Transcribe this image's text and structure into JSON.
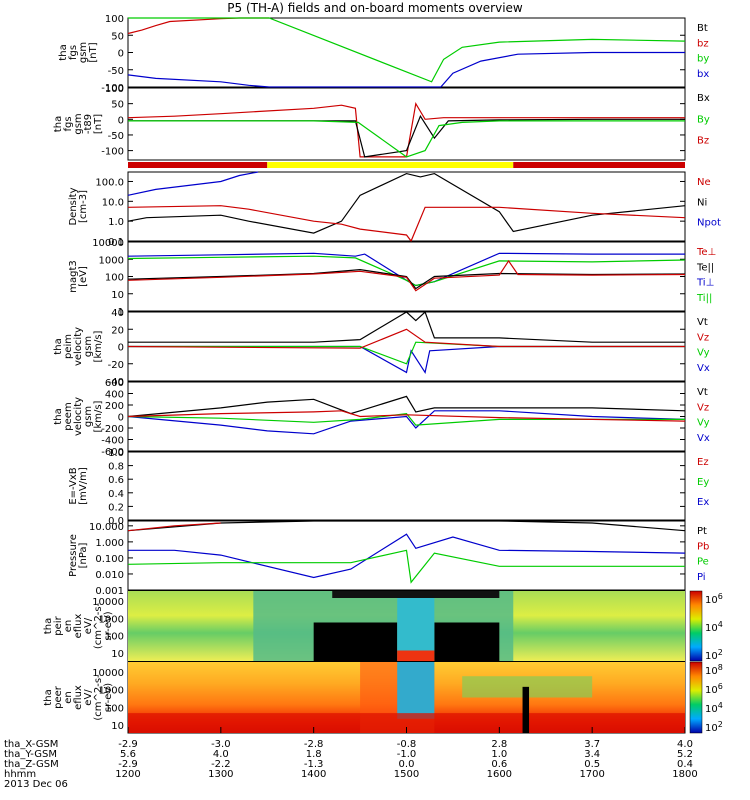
{
  "title": "P5 (TH-A) fields and on-board moments overview",
  "chart_data": [
    {
      "type": "line",
      "panel": "bgsm",
      "ylabel": [
        "tha",
        "fgs",
        "gsm",
        "[nT]"
      ],
      "yticks": [
        "100",
        "50",
        "0",
        "-50",
        "-100"
      ],
      "ylim": [
        -100,
        100
      ],
      "legend": [
        {
          "name": "Bt",
          "color": "#000000"
        },
        {
          "name": "bz",
          "color": "#cc0000"
        },
        {
          "name": "by",
          "color": "#00cc00"
        },
        {
          "name": "bx",
          "color": "#0000cc"
        }
      ],
      "series": [
        {
          "name": "bz",
          "color": "#cc0000",
          "x": [
            1200,
            1215,
            1230,
            1245,
            1300,
            1320,
            1340,
            1352
          ],
          "y": [
            55,
            65,
            78,
            90,
            98,
            100,
            100,
            100
          ]
        },
        {
          "name": "by",
          "color": "#00cc00",
          "x": [
            1200,
            1230,
            1300,
            1330,
            1352,
            1527,
            1540,
            1560,
            1600,
            1700,
            1800
          ],
          "y": [
            100,
            100,
            100,
            100,
            100,
            -85,
            -20,
            15,
            30,
            38,
            33
          ]
        },
        {
          "name": "bx",
          "color": "#0000cc",
          "x": [
            1200,
            1230,
            1300,
            1330,
            1352,
            1537,
            1550,
            1580,
            1620,
            1700,
            1800
          ],
          "y": [
            -65,
            -75,
            -85,
            -95,
            -100,
            -100,
            -60,
            -25,
            -5,
            0,
            0
          ]
        }
      ]
    },
    {
      "type": "line",
      "panel": "bgse",
      "ylabel": [
        "tha",
        "fgs",
        "gsm",
        "-t89",
        "[nT]"
      ],
      "yticks": [
        "100",
        "50",
        "0",
        "-50",
        "-100"
      ],
      "ylim": [
        -130,
        100
      ],
      "legend": [
        {
          "name": "Bx",
          "color": "#000000"
        },
        {
          "name": "By",
          "color": "#00cc00"
        },
        {
          "name": "Bz",
          "color": "#cc0000"
        }
      ],
      "series": [
        {
          "name": "Bz",
          "color": "#cc0000",
          "x": [
            1200,
            1250,
            1300,
            1340,
            1400,
            1430,
            1445,
            1450,
            1500,
            1510,
            1520,
            1540,
            1600,
            1700,
            1800
          ],
          "y": [
            5,
            10,
            18,
            25,
            35,
            45,
            35,
            -120,
            -120,
            50,
            0,
            5,
            5,
            5,
            5
          ]
        },
        {
          "name": "Bx",
          "color": "#000000",
          "x": [
            1200,
            1300,
            1400,
            1445,
            1455,
            1500,
            1515,
            1530,
            1545,
            1600,
            1700,
            1800
          ],
          "y": [
            -5,
            -5,
            -5,
            -5,
            -120,
            -100,
            10,
            -60,
            -5,
            -2,
            0,
            0
          ]
        },
        {
          "name": "By",
          "color": "#00cc00",
          "x": [
            1200,
            1300,
            1400,
            1448,
            1500,
            1520,
            1535,
            1560,
            1600,
            1700,
            1800
          ],
          "y": [
            -5,
            -5,
            -5,
            -10,
            -120,
            -100,
            -20,
            -10,
            -5,
            -5,
            -5
          ]
        }
      ]
    },
    {
      "type": "line",
      "panel": "density",
      "ylabel": [
        "Density",
        "[cm-3]"
      ],
      "yticks": [
        "100.0",
        "10.0",
        "1.0",
        "0.1"
      ],
      "scale": "log",
      "ylim": [
        0.1,
        300
      ],
      "legend": [
        {
          "name": "Ne",
          "color": "#cc0000"
        },
        {
          "name": "Ni",
          "color": "#000000"
        },
        {
          "name": "Npot",
          "color": "#0000cc"
        }
      ],
      "series": [
        {
          "name": "Ni",
          "color": "#000000",
          "x": [
            1200,
            1220,
            1300,
            1330,
            1400,
            1430,
            1450,
            1500,
            1515,
            1530,
            1600,
            1615,
            1700,
            1800
          ],
          "y": [
            1,
            1.5,
            2,
            1,
            0.25,
            1,
            20,
            250,
            170,
            250,
            3,
            0.3,
            2,
            6
          ]
        },
        {
          "name": "Ne",
          "color": "#cc0000",
          "x": [
            1200,
            1300,
            1330,
            1400,
            1430,
            1450,
            1500,
            1505,
            1520,
            1600,
            1700,
            1800
          ],
          "y": [
            5,
            6,
            4,
            1,
            0.7,
            0.4,
            0.2,
            0.1,
            5,
            5,
            2.5,
            1.5
          ]
        },
        {
          "name": "Npot",
          "color": "#0000cc",
          "x": [
            1200,
            1230,
            1300,
            1320,
            1340
          ],
          "y": [
            20,
            40,
            100,
            200,
            300
          ]
        }
      ]
    },
    {
      "type": "line",
      "panel": "temperature",
      "ylabel": [
        "magt3",
        "[eV]"
      ],
      "yticks": [
        "10000",
        "1000",
        "100",
        "10",
        "1"
      ],
      "scale": "log",
      "ylim": [
        1,
        10000
      ],
      "legend": [
        {
          "name": "Te⊥",
          "color": "#cc0000"
        },
        {
          "name": "Te||",
          "color": "#000000"
        },
        {
          "name": "Ti⊥",
          "color": "#0000cc"
        },
        {
          "name": "Ti||",
          "color": "#00cc00"
        }
      ],
      "series": [
        {
          "name": "Ti⊥",
          "color": "#0000cc",
          "x": [
            1200,
            1300,
            1400,
            1445,
            1455,
            1500,
            1510,
            1530,
            1600,
            1700,
            1800
          ],
          "y": [
            1500,
            1800,
            2200,
            1500,
            2000,
            60,
            30,
            50,
            2200,
            2000,
            2000
          ]
        },
        {
          "name": "Ti||",
          "color": "#00cc00",
          "x": [
            1200,
            1300,
            1400,
            1445,
            1500,
            1510,
            1530,
            1600,
            1700,
            1800
          ],
          "y": [
            1100,
            1300,
            1500,
            1200,
            60,
            30,
            50,
            800,
            700,
            900
          ]
        },
        {
          "name": "Te||",
          "color": "#000000",
          "x": [
            1200,
            1300,
            1400,
            1450,
            1500,
            1510,
            1530,
            1600,
            1700,
            1800
          ],
          "y": [
            70,
            100,
            150,
            250,
            100,
            20,
            100,
            150,
            130,
            140
          ]
        },
        {
          "name": "Te⊥",
          "color": "#cc0000",
          "x": [
            1200,
            1300,
            1400,
            1450,
            1500,
            1510,
            1530,
            1600,
            1610,
            1620,
            1700,
            1800
          ],
          "y": [
            60,
            90,
            140,
            200,
            90,
            15,
            80,
            120,
            800,
            130,
            120,
            130
          ]
        }
      ]
    },
    {
      "type": "line",
      "panel": "vi",
      "ylabel": [
        "tha",
        "peim",
        "velocity",
        "gsm",
        "[km/s]"
      ],
      "yticks": [
        "40",
        "20",
        "0",
        "-20",
        "-40"
      ],
      "ylim": [
        -40,
        40
      ],
      "legend": [
        {
          "name": "Vt",
          "color": "#000000"
        },
        {
          "name": "Vz",
          "color": "#cc0000"
        },
        {
          "name": "Vy",
          "color": "#00cc00"
        },
        {
          "name": "Vx",
          "color": "#0000cc"
        }
      ],
      "series": [
        {
          "name": "Vt",
          "color": "#000000",
          "x": [
            1200,
            1400,
            1450,
            1500,
            1510,
            1520,
            1530,
            1600,
            1700,
            1800
          ],
          "y": [
            5,
            5,
            8,
            40,
            30,
            40,
            10,
            10,
            5,
            5
          ]
        },
        {
          "name": "Vx",
          "color": "#0000cc",
          "x": [
            1200,
            1450,
            1500,
            1505,
            1520,
            1525,
            1600,
            1800
          ],
          "y": [
            0,
            0,
            -30,
            -5,
            -30,
            -5,
            0,
            0
          ]
        },
        {
          "name": "Vy",
          "color": "#00cc00",
          "x": [
            1200,
            1450,
            1500,
            1510,
            1600,
            1800
          ],
          "y": [
            0,
            0,
            -20,
            5,
            0,
            0
          ]
        },
        {
          "name": "Vz",
          "color": "#cc0000",
          "x": [
            1200,
            1450,
            1500,
            1520,
            1600,
            1800
          ],
          "y": [
            0,
            -2,
            20,
            5,
            0,
            0
          ]
        }
      ]
    },
    {
      "type": "line",
      "panel": "ve",
      "ylabel": [
        "tha",
        "peem",
        "velocity",
        "gsm",
        "[km/s]"
      ],
      "yticks": [
        "600",
        "400",
        "200",
        "0",
        "-200",
        "-400",
        "-600"
      ],
      "ylim": [
        -600,
        600
      ],
      "legend": [
        {
          "name": "Vt",
          "color": "#000000"
        },
        {
          "name": "Vz",
          "color": "#cc0000"
        },
        {
          "name": "Vy",
          "color": "#00cc00"
        },
        {
          "name": "Vx",
          "color": "#0000cc"
        }
      ],
      "series": [
        {
          "name": "Vt",
          "color": "#000000",
          "x": [
            1200,
            1300,
            1350,
            1400,
            1440,
            1450,
            1500,
            1510,
            1530,
            1600,
            1700,
            1800
          ],
          "y": [
            0,
            150,
            250,
            300,
            50,
            100,
            350,
            80,
            150,
            150,
            150,
            100
          ]
        },
        {
          "name": "Vx",
          "color": "#0000cc",
          "x": [
            1200,
            1300,
            1350,
            1400,
            1440,
            1500,
            1510,
            1530,
            1600,
            1700,
            1800
          ],
          "y": [
            0,
            -150,
            -250,
            -300,
            -80,
            0,
            -200,
            100,
            100,
            0,
            -50
          ]
        },
        {
          "name": "Vy",
          "color": "#00cc00",
          "x": [
            1200,
            1300,
            1400,
            1450,
            1500,
            1510,
            1600,
            1800
          ],
          "y": [
            0,
            -30,
            -100,
            -50,
            50,
            -150,
            -50,
            -50
          ]
        },
        {
          "name": "Vz",
          "color": "#cc0000",
          "x": [
            1200,
            1300,
            1400,
            1430,
            1450,
            1500,
            1600,
            1700,
            1800
          ],
          "y": [
            0,
            50,
            80,
            100,
            0,
            30,
            -20,
            -50,
            -80
          ]
        }
      ]
    },
    {
      "type": "line",
      "panel": "efield",
      "ylabel": [
        "E=-VxB",
        "[mV/m]"
      ],
      "yticks": [
        "1.0",
        "0.8",
        "0.6",
        "0.4",
        "0.2",
        "0.0"
      ],
      "ylim": [
        0,
        1
      ],
      "legend": [
        {
          "name": "Ez",
          "color": "#cc0000"
        },
        {
          "name": "Ey",
          "color": "#00cc00"
        },
        {
          "name": "Ex",
          "color": "#0000cc"
        }
      ],
      "series": []
    },
    {
      "type": "line",
      "panel": "pressure",
      "ylabel": [
        "Pressure",
        "[nPa]"
      ],
      "yticks": [
        "10.000",
        "1.000",
        "0.100",
        "0.010",
        "0.001"
      ],
      "scale": "log",
      "ylim": [
        0.001,
        20
      ],
      "legend": [
        {
          "name": "Pt",
          "color": "#000000"
        },
        {
          "name": "Pb",
          "color": "#cc0000"
        },
        {
          "name": "Pe",
          "color": "#00cc00"
        },
        {
          "name": "Pi",
          "color": "#0000cc"
        }
      ],
      "series": [
        {
          "name": "Pt",
          "color": "#000000",
          "x": [
            1200,
            1300,
            1400,
            1500,
            1600,
            1700,
            1800
          ],
          "y": [
            5,
            15,
            20,
            20,
            20,
            15,
            5
          ]
        },
        {
          "name": "Pb",
          "color": "#cc0000",
          "x": [
            1200,
            1250,
            1300
          ],
          "y": [
            5,
            10,
            15
          ]
        },
        {
          "name": "Pi",
          "color": "#0000cc",
          "x": [
            1200,
            1250,
            1300,
            1400,
            1440,
            1500,
            1510,
            1550,
            1600,
            1700,
            1800
          ],
          "y": [
            0.3,
            0.3,
            0.15,
            0.006,
            0.02,
            3,
            0.4,
            2,
            0.3,
            0.25,
            0.2
          ]
        },
        {
          "name": "Pe",
          "color": "#00cc00",
          "x": [
            1200,
            1300,
            1400,
            1440,
            1500,
            1505,
            1530,
            1600,
            1700,
            1800
          ],
          "y": [
            0.04,
            0.05,
            0.05,
            0.05,
            0.3,
            0.003,
            0.2,
            0.03,
            0.03,
            0.03
          ]
        }
      ]
    },
    {
      "type": "heatmap",
      "panel": "ion-spectrogram",
      "ylabel": [
        "tha",
        "peir",
        "en",
        "eflux",
        "eV/",
        "(cm^2-s-",
        "sr-eV)"
      ],
      "yticks": [
        "10000",
        "1000",
        "100",
        "10"
      ],
      "colorbar_ticks": [
        "10^6",
        "10^4",
        "10^2"
      ]
    },
    {
      "type": "heatmap",
      "panel": "electron-spectrogram",
      "ylabel": [
        "tha",
        "peer",
        "en",
        "eflux",
        "eV/",
        "(cm^2-s-",
        "sr-eV)"
      ],
      "yticks": [
        "10000",
        "1000",
        "100",
        "10"
      ],
      "colorbar_ticks": [
        "10^8",
        "10^6",
        "10^4",
        "10^2"
      ]
    }
  ],
  "xaxis": {
    "ticks": [
      "1200",
      "1300",
      "1400",
      "1500",
      "1600",
      "1700",
      "1800"
    ],
    "rows": [
      {
        "label": "tha_X-GSM",
        "values": [
          "-2.9",
          "-3.0",
          "-2.8",
          "-0.8",
          "2.8",
          "3.7",
          "4.0"
        ]
      },
      {
        "label": "tha_Y-GSM",
        "values": [
          "5.6",
          "4.0",
          "1.8",
          "-1.0",
          "1.0",
          "3.4",
          "5.2"
        ]
      },
      {
        "label": "tha_Z-GSM",
        "values": [
          "-2.9",
          "-2.2",
          "-1.3",
          "0.0",
          "0.6",
          "0.5",
          "0.4"
        ]
      },
      {
        "label": "hhmm",
        "values": [
          "1200",
          "1300",
          "1400",
          "1500",
          "1600",
          "1700",
          "1800"
        ]
      }
    ],
    "date": "2013 Dec 06"
  },
  "colors": {
    "red": "#cc0000",
    "green": "#00cc00",
    "blue": "#0000cc",
    "yellow": "#ffff00"
  }
}
